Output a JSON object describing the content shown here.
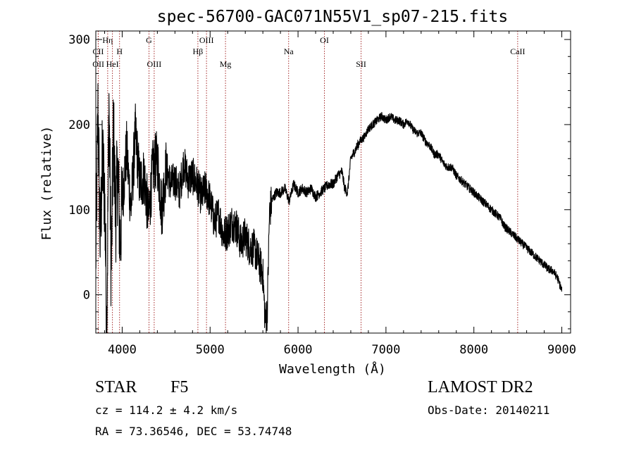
{
  "chart_data": {
    "type": "line",
    "title": "spec-56700-GAC071N55V1_sp07-215.fits",
    "xlabel": "Wavelength (Å)",
    "ylabel": "Flux (relative)",
    "xlim": [
      3700,
      9100
    ],
    "ylim": [
      -45,
      310
    ],
    "xticks": [
      4000,
      5000,
      6000,
      7000,
      8000,
      9000
    ],
    "yticks": [
      0,
      100,
      200,
      300
    ],
    "grid": false,
    "legend": "none",
    "line_color": "#000000",
    "marker_color": "#a52a2a",
    "lines": [
      {
        "label": "CII",
        "x": 3727,
        "row": 1
      },
      {
        "label": "OII",
        "x": 3729,
        "row": 2
      },
      {
        "label": "Hη",
        "x": 3835,
        "row": 0
      },
      {
        "label": "HeI",
        "x": 3889,
        "row": 2
      },
      {
        "label": "H",
        "x": 3970,
        "row": 1
      },
      {
        "label": "G",
        "x": 4305,
        "row": 0
      },
      {
        "label": "OIII",
        "x": 4364,
        "row": 2
      },
      {
        "label": "Hβ",
        "x": 4861,
        "row": 1
      },
      {
        "label": "OIII",
        "x": 4959,
        "row": 0
      },
      {
        "label": "Mg",
        "x": 5175,
        "row": 2
      },
      {
        "label": "Na",
        "x": 5893,
        "row": 1
      },
      {
        "label": "OI",
        "x": 6300,
        "row": 0
      },
      {
        "label": "SII",
        "x": 6717,
        "row": 2
      },
      {
        "label": "CaII",
        "x": 8498,
        "row": 1
      }
    ],
    "series": [
      {
        "x": [
          3700,
          3725,
          3750,
          3775,
          3800,
          3825,
          3850,
          3875,
          3900,
          3925,
          3950,
          3975,
          4000,
          4050,
          4100,
          4150,
          4200,
          4250,
          4300,
          4350,
          4400,
          4450,
          4500,
          4550,
          4600,
          4650,
          4700,
          4750,
          4800,
          4850,
          4900,
          4950,
          5000,
          5050,
          5100,
          5150,
          5200,
          5250,
          5300,
          5350,
          5400,
          5450,
          5500,
          5550,
          5600,
          5625,
          5650,
          5675,
          5700,
          5725,
          5750,
          5800,
          5850,
          5900,
          5950,
          6000,
          6050,
          6100,
          6150,
          6200,
          6250,
          6300,
          6350,
          6400,
          6450,
          6500,
          6530,
          6563,
          6600,
          6650,
          6700,
          6750,
          6800,
          6850,
          6900,
          6950,
          7000,
          7050,
          7100,
          7150,
          7200,
          7250,
          7300,
          7350,
          7400,
          7450,
          7500,
          7550,
          7600,
          7650,
          7700,
          7750,
          7800,
          7850,
          7900,
          7950,
          8000,
          8050,
          8100,
          8150,
          8200,
          8250,
          8300,
          8350,
          8400,
          8450,
          8500,
          8550,
          8600,
          8650,
          8700,
          8750,
          8800,
          8850,
          8900,
          8950,
          9000
        ],
        "y": [
          40,
          220,
          60,
          160,
          120,
          -40,
          230,
          20,
          200,
          90,
          150,
          60,
          110,
          170,
          100,
          190,
          130,
          140,
          90,
          150,
          160,
          100,
          150,
          130,
          135,
          120,
          155,
          135,
          140,
          130,
          115,
          125,
          110,
          85,
          95,
          70,
          75,
          85,
          80,
          60,
          70,
          55,
          55,
          40,
          25,
          -30,
          -20,
          95,
          110,
          115,
          120,
          120,
          125,
          110,
          130,
          120,
          125,
          120,
          125,
          115,
          120,
          125,
          130,
          130,
          140,
          145,
          125,
          120,
          160,
          170,
          180,
          185,
          195,
          200,
          205,
          210,
          205,
          210,
          205,
          205,
          200,
          205,
          195,
          190,
          190,
          180,
          175,
          165,
          165,
          155,
          150,
          150,
          140,
          135,
          130,
          125,
          120,
          115,
          110,
          105,
          100,
          95,
          90,
          80,
          75,
          70,
          65,
          60,
          55,
          50,
          45,
          40,
          35,
          30,
          28,
          20,
          5
        ]
      }
    ]
  },
  "info": {
    "object_class": "STAR",
    "subclass": "F5",
    "survey": "LAMOST DR2",
    "cz": "cz = 114.2 ± 4.2 km/s",
    "obs_date": "Obs-Date: 20140211",
    "coords": "RA =  73.36546, DEC =  53.74748"
  }
}
